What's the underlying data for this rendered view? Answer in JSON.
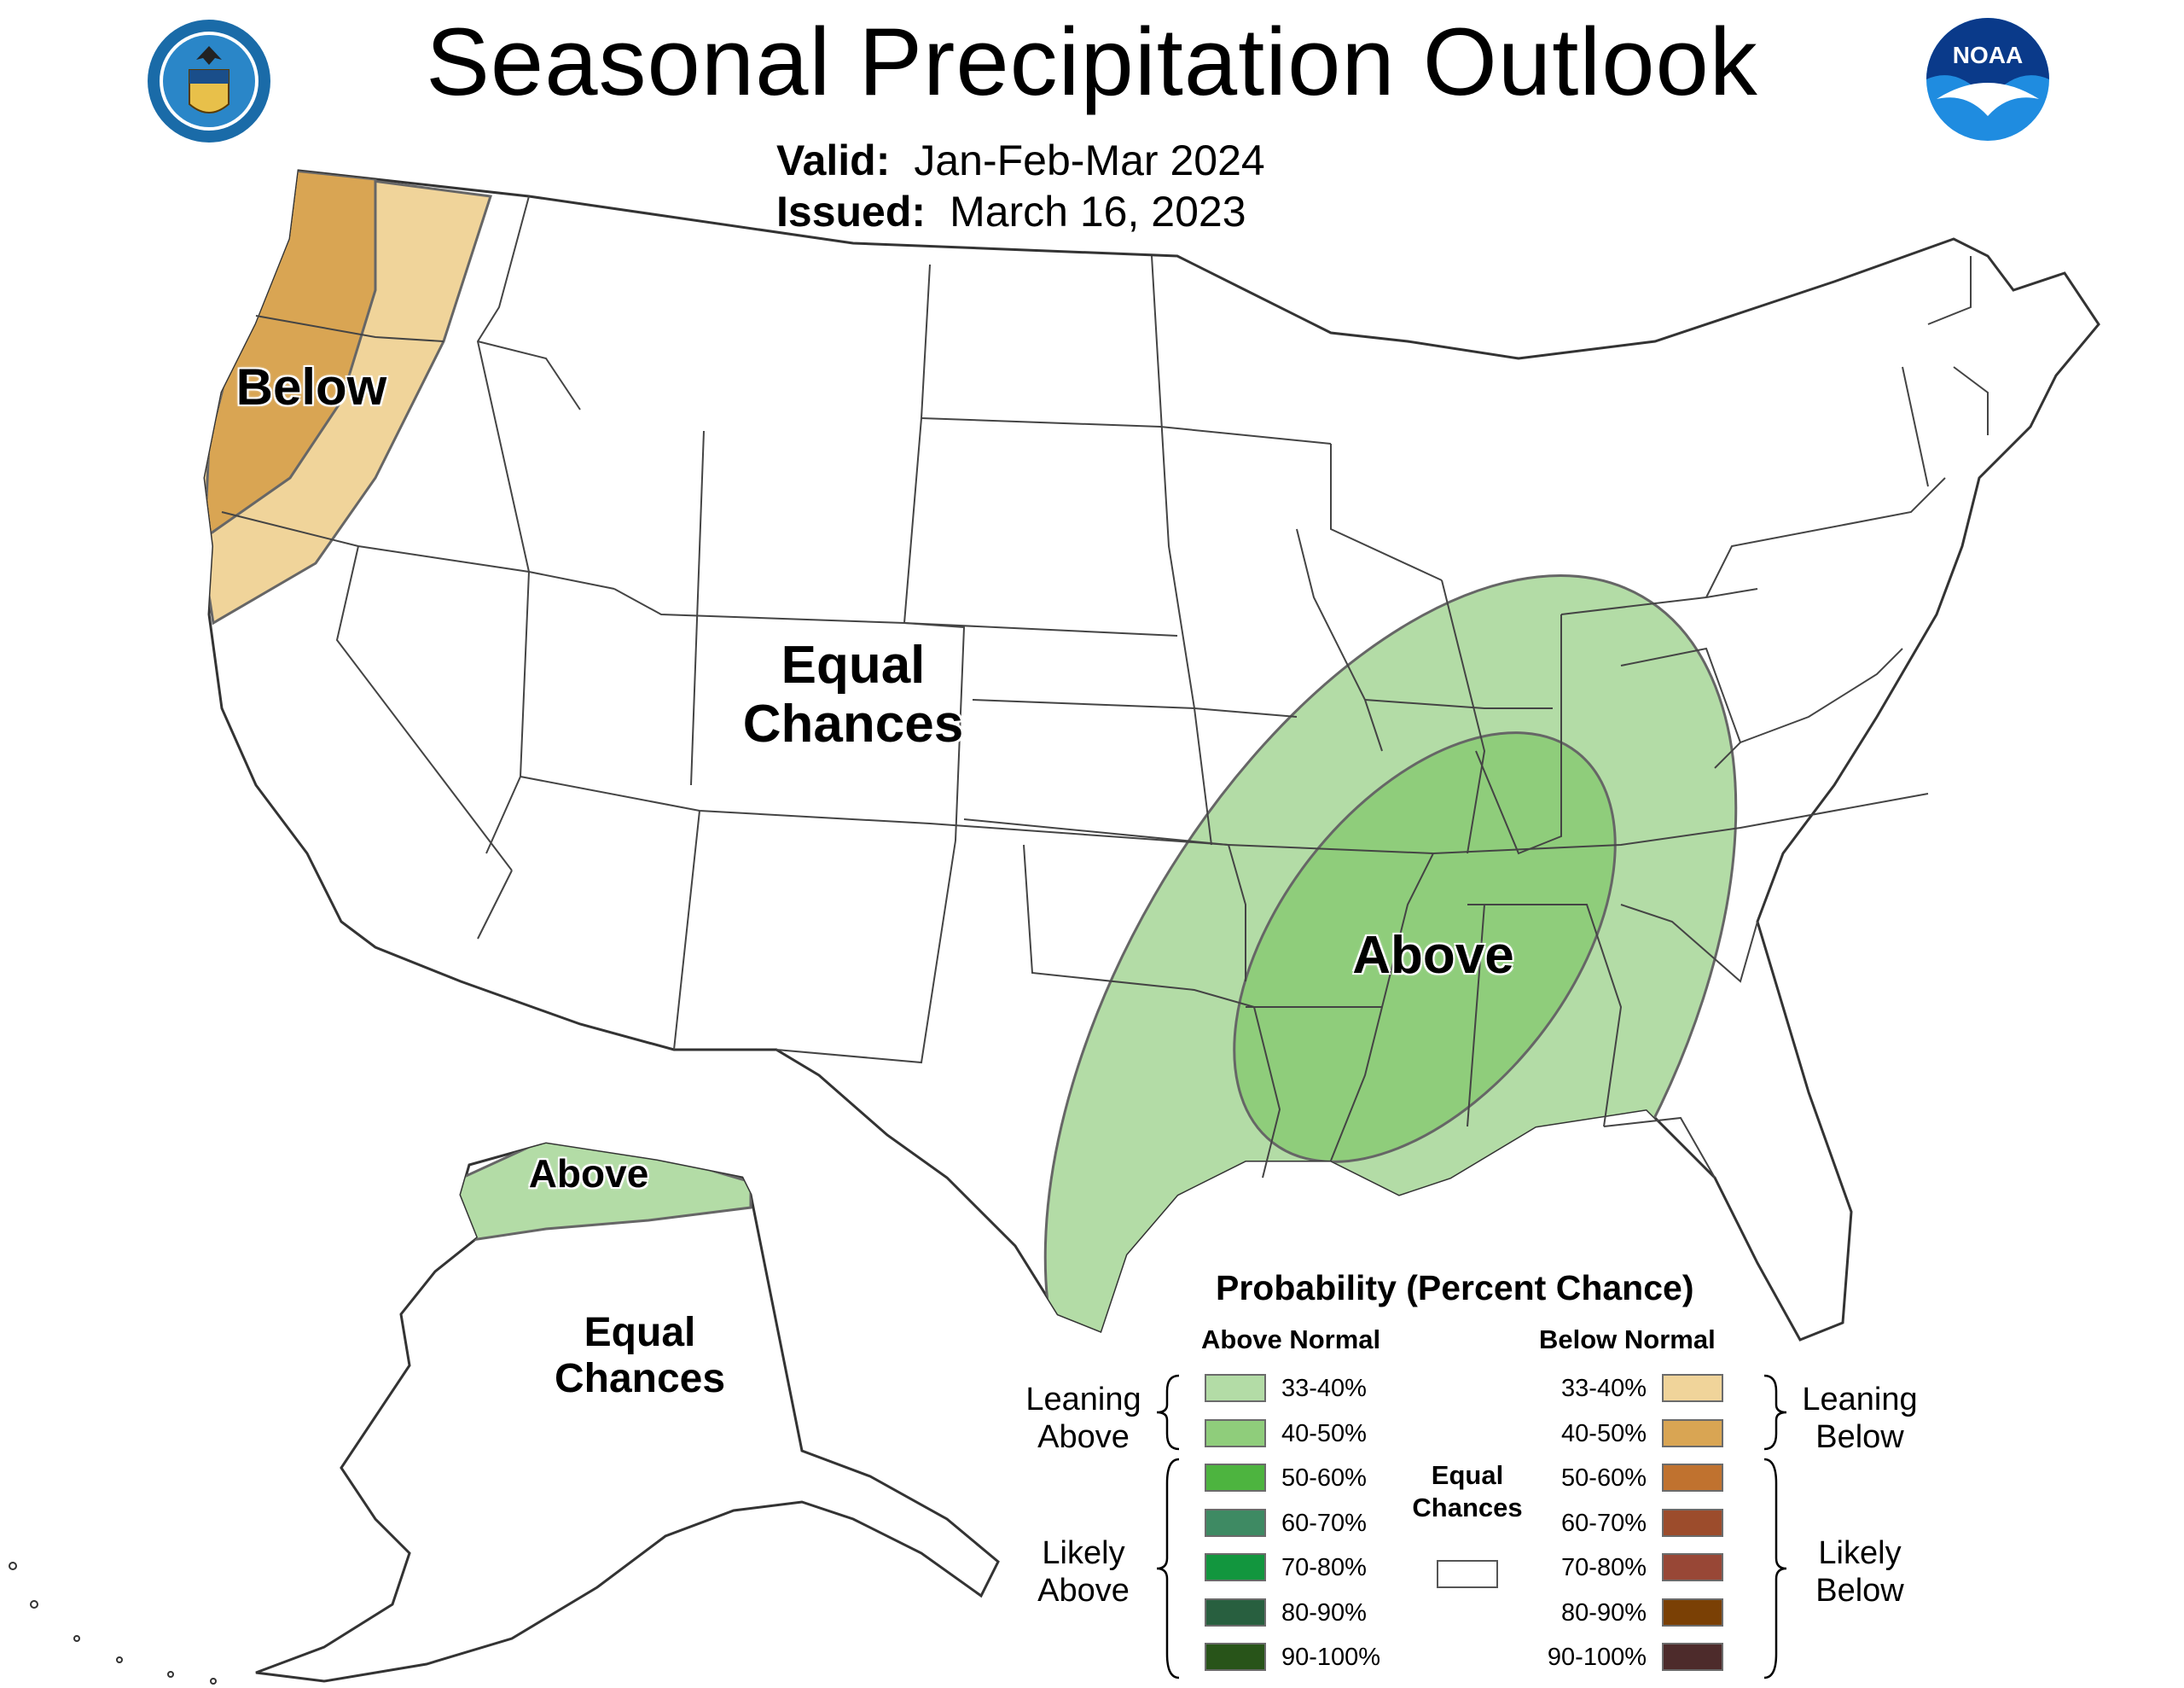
{
  "header": {
    "title": "Seasonal Precipitation Outlook",
    "valid_label": "Valid:",
    "valid_value": "Jan-Feb-Mar 2024",
    "issued_label": "Issued:",
    "issued_value": "March 16, 2023"
  },
  "logos": {
    "left": {
      "icon": "department-of-commerce-seal"
    },
    "right": {
      "icon": "noaa-logo",
      "text": "NOAA"
    }
  },
  "map": {
    "conus_labels": {
      "below": "Below",
      "equal_1": "Equal",
      "equal_2": "Chances",
      "above": "Above"
    },
    "alaska_labels": {
      "above": "Above",
      "equal_1": "Equal",
      "equal_2": "Chances"
    },
    "colors": {
      "lean_above": "#b3dca6",
      "above_40_50": "#8fcd7b",
      "lean_below": "#f0d49a",
      "below_40_50": "#d9a553",
      "outline": "#555555",
      "state_line": "#444444"
    }
  },
  "legend": {
    "title": "Probability (Percent Chance)",
    "above_heading": "Above Normal",
    "below_heading": "Below Normal",
    "leaning_above": [
      "Leaning",
      "Above"
    ],
    "likely_above": [
      "Likely",
      "Above"
    ],
    "leaning_below": [
      "Leaning",
      "Below"
    ],
    "likely_below": [
      "Likely",
      "Below"
    ],
    "equal_chances": [
      "Equal",
      "Chances"
    ],
    "above_bins": [
      {
        "label": "33-40%",
        "color": "#b3dca6"
      },
      {
        "label": "40-50%",
        "color": "#8fcd7b"
      },
      {
        "label": "50-60%",
        "color": "#4db43f"
      },
      {
        "label": "60-70%",
        "color": "#3e8a63"
      },
      {
        "label": "70-80%",
        "color": "#12963e"
      },
      {
        "label": "80-90%",
        "color": "#285f3f"
      },
      {
        "label": "90-100%",
        "color": "#285419"
      }
    ],
    "below_bins": [
      {
        "label": "33-40%",
        "color": "#f0d49a"
      },
      {
        "label": "40-50%",
        "color": "#d9a553"
      },
      {
        "label": "50-60%",
        "color": "#c0722f"
      },
      {
        "label": "60-70%",
        "color": "#9c4c2c"
      },
      {
        "label": "70-80%",
        "color": "#984736"
      },
      {
        "label": "80-90%",
        "color": "#7a4005"
      },
      {
        "label": "90-100%",
        "color": "#4d2b2b"
      }
    ]
  }
}
